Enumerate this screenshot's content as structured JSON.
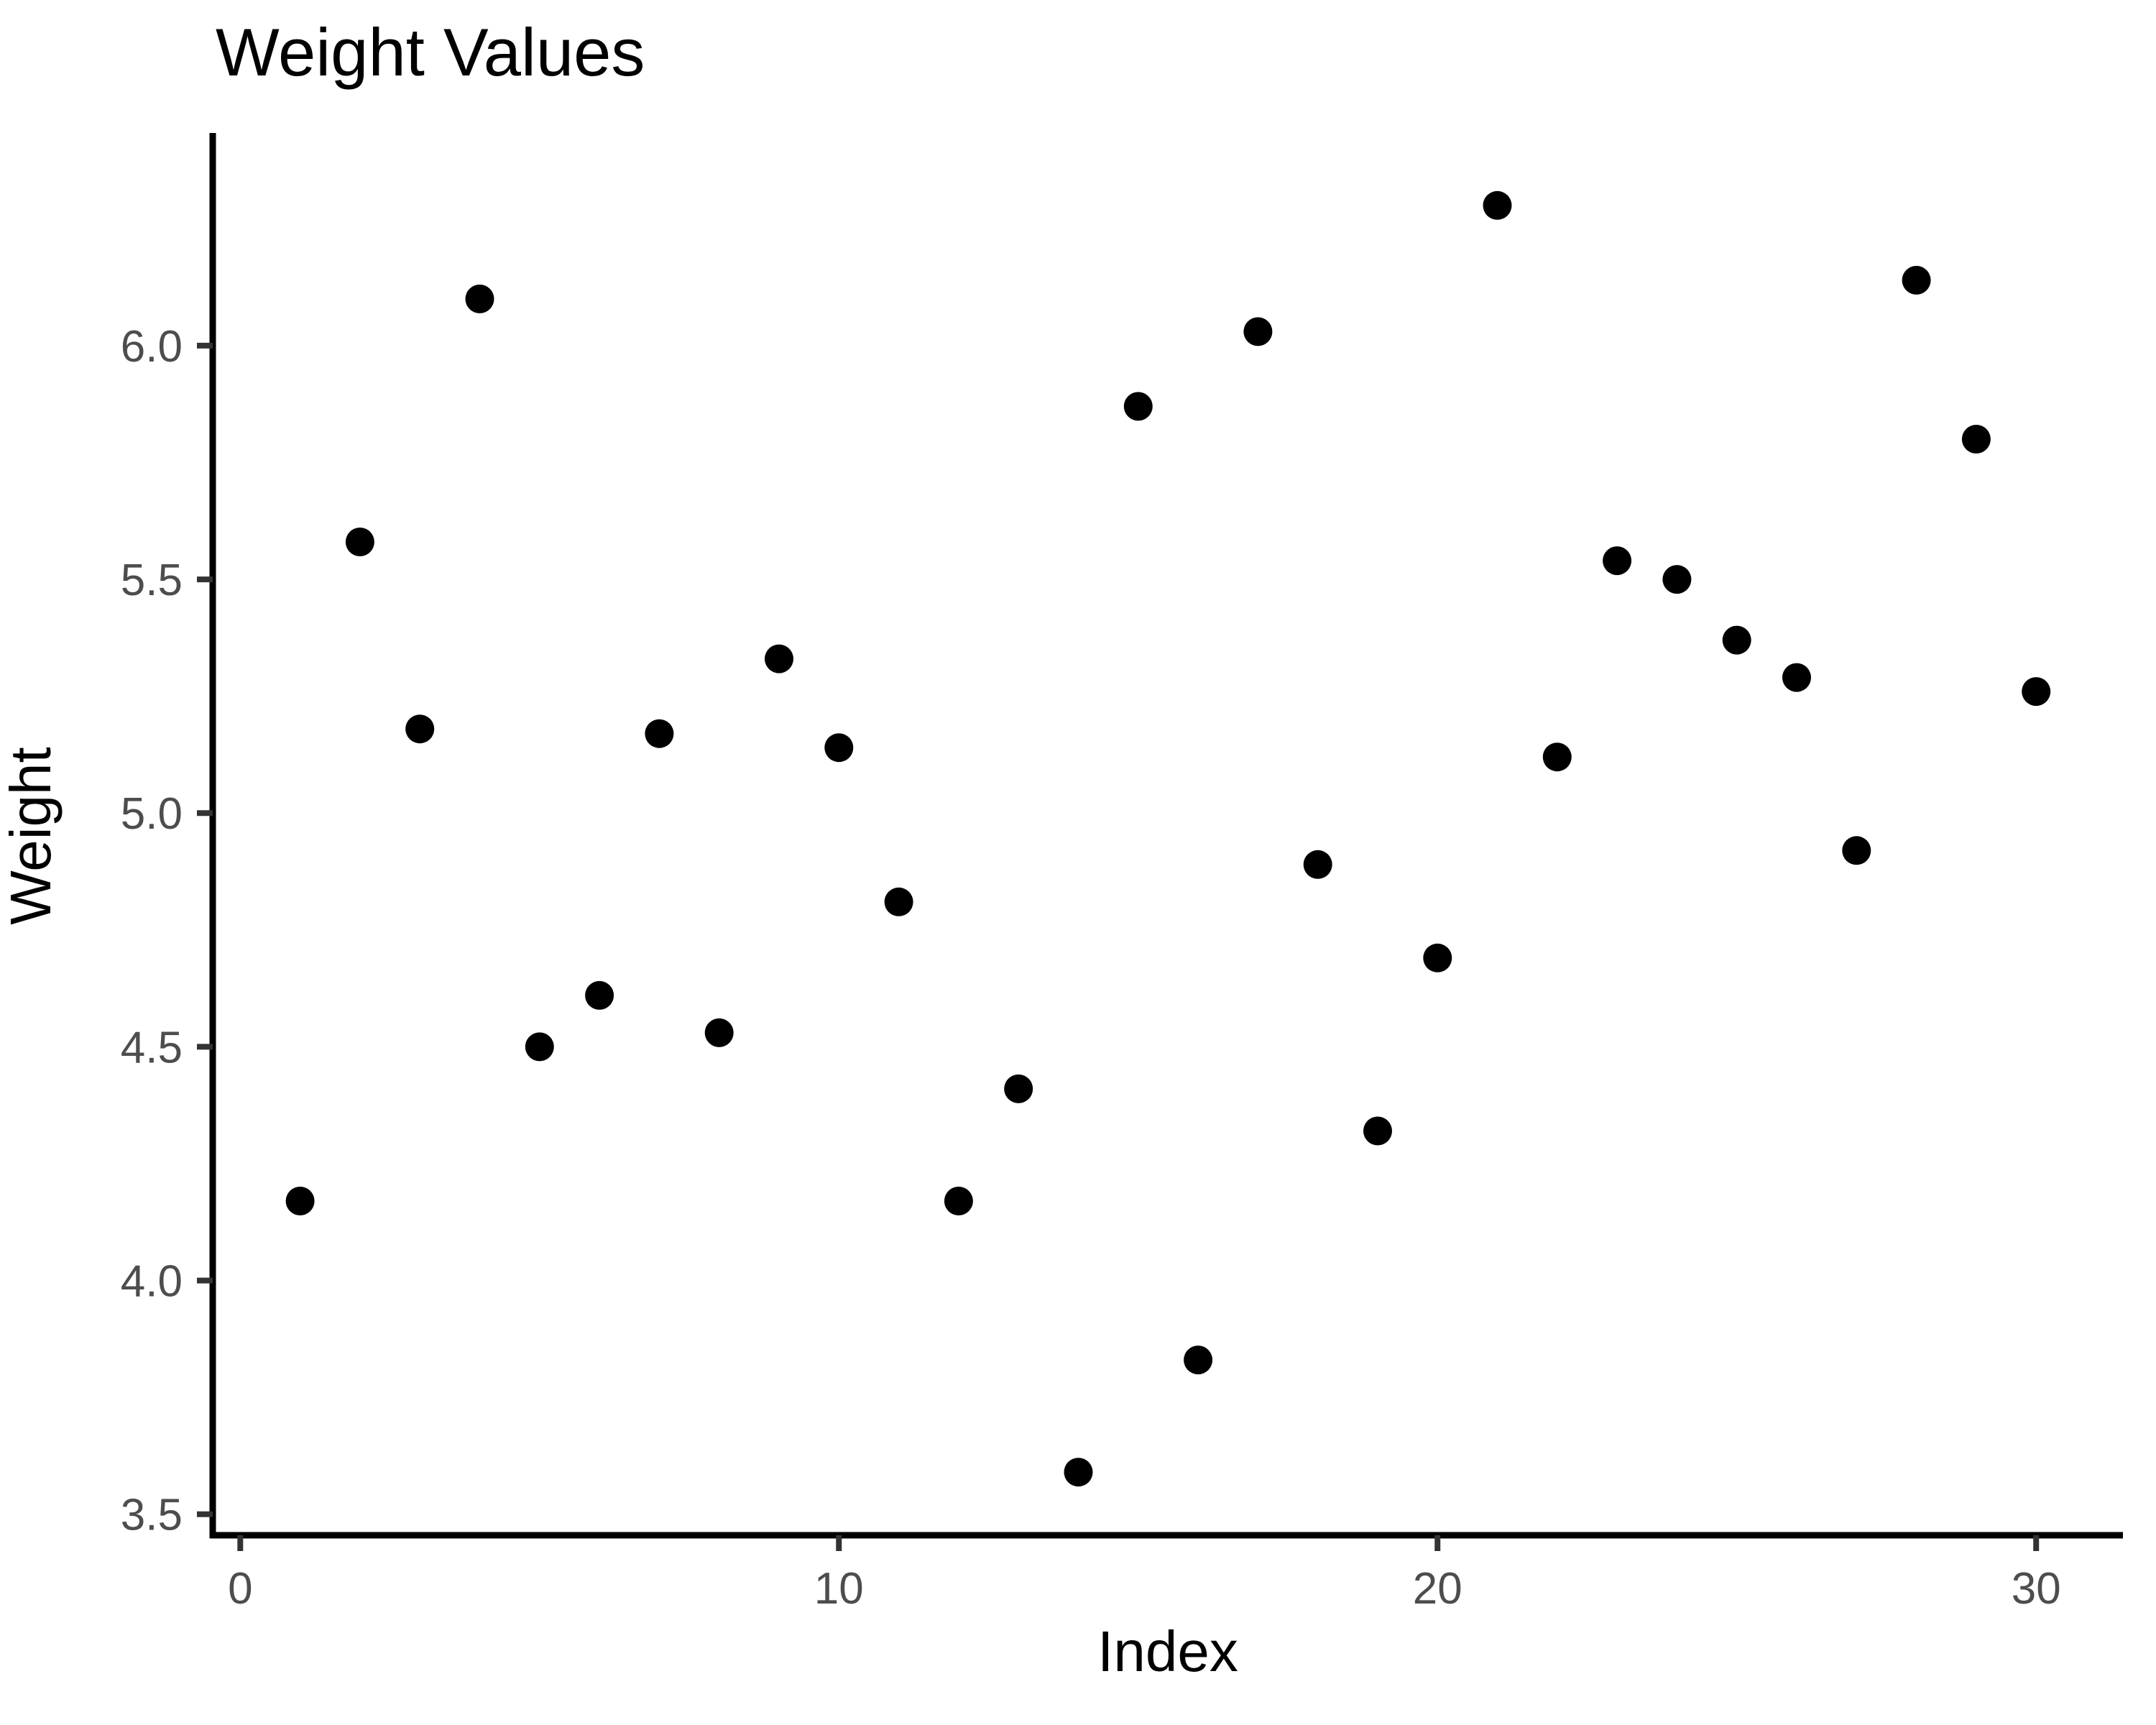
{
  "figure": {
    "title": "Weight Values"
  },
  "chart_data": {
    "type": "scatter",
    "title": "Weight Values",
    "xlabel": "Index",
    "ylabel": "Weight",
    "series": [
      {
        "name": "Weight",
        "x": [
          1,
          2,
          3,
          4,
          5,
          6,
          7,
          8,
          9,
          10,
          11,
          12,
          13,
          14,
          15,
          16,
          17,
          18,
          19,
          20,
          21,
          22,
          23,
          24,
          25,
          26,
          27,
          28,
          29,
          30
        ],
        "y": [
          4.17,
          5.58,
          5.18,
          6.1,
          4.5,
          4.61,
          5.17,
          4.53,
          5.33,
          5.14,
          4.81,
          4.17,
          4.41,
          3.59,
          5.87,
          3.83,
          6.03,
          4.89,
          4.32,
          4.69,
          6.3,
          5.12,
          5.54,
          5.5,
          5.37,
          5.29,
          4.92,
          6.14,
          5.8,
          5.26
        ]
      }
    ],
    "x_ticks": {
      "values": [
        0,
        10,
        20,
        30
      ],
      "labels": [
        "0",
        "10",
        "20",
        "30"
      ]
    },
    "y_ticks": {
      "values": [
        3.5,
        4.0,
        4.5,
        5.0,
        5.5,
        6.0
      ],
      "labels": [
        "3.5",
        "4.0",
        "4.5",
        "5.0",
        "5.5",
        "6.0"
      ]
    },
    "xlim": [
      -0.46,
      31.45
    ],
    "ylim": [
      3.455,
      6.455
    ],
    "grid": false,
    "legend": false,
    "point_color": "#000000",
    "point_radius_px": 20,
    "axis_line_color": "#000000",
    "tick_color": "#333333",
    "tick_label_color": "#4d4d4d",
    "title_color": "#000000"
  }
}
